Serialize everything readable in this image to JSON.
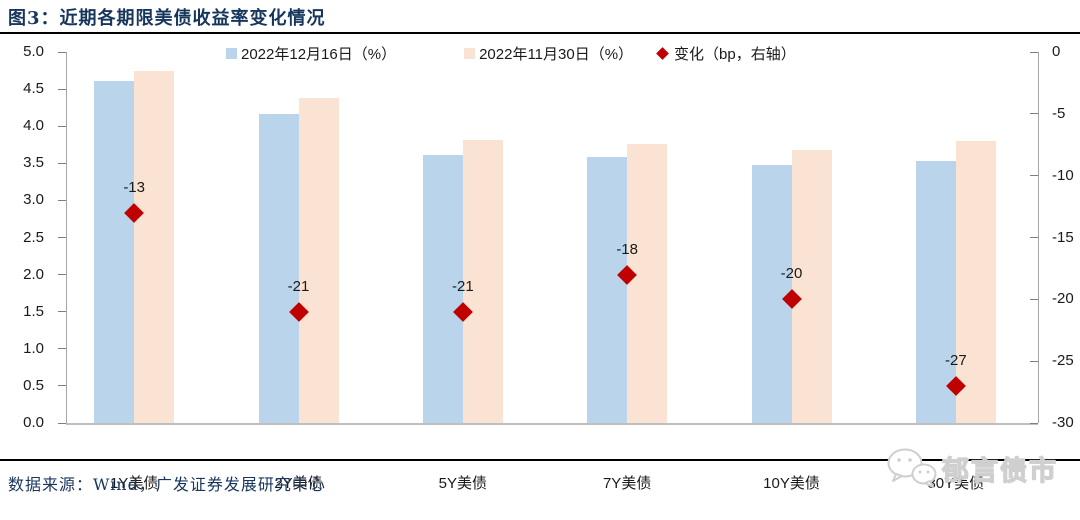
{
  "header": {
    "title": "图3：近期各期限美债收益率变化情况"
  },
  "footer": {
    "source": "数据来源：Wind，广发证券发展研究中心",
    "watermark": "郁言债市",
    "watermark_icon": "wechat-icon"
  },
  "chart_data": {
    "type": "bar",
    "title": "近期各期限美债收益率变化情况",
    "categories": [
      "1Y美债",
      "2Y美债",
      "5Y美债",
      "7Y美债",
      "10Y美债",
      "30Y美债"
    ],
    "series": [
      {
        "name": "2022年12月16日（%）",
        "type": "bar",
        "axis": "left",
        "color": "#bad4eb",
        "values": [
          4.61,
          4.17,
          3.61,
          3.58,
          3.48,
          3.53
        ]
      },
      {
        "name": "2022年11月30日（%）",
        "type": "bar",
        "axis": "left",
        "color": "#fae3d3",
        "values": [
          4.74,
          4.38,
          3.82,
          3.76,
          3.68,
          3.8
        ]
      },
      {
        "name": "变化（bp，右轴）",
        "type": "scatter-diamond",
        "axis": "right",
        "color": "#c00000",
        "values": [
          -13,
          -21,
          -21,
          -18,
          -20,
          -27
        ],
        "labels": [
          "-13",
          "-21",
          "-21",
          "-18",
          "-20",
          "-27"
        ]
      }
    ],
    "left_axis": {
      "min": 0,
      "max": 5,
      "step": 0.5,
      "decimals": 1
    },
    "right_axis": {
      "min": -30,
      "max": 0,
      "step": 5,
      "decimals": 0
    },
    "legend_position": "top",
    "grid": false,
    "colors": {
      "axis_line": "#a6a6a6",
      "baseline": "#bfbfbf",
      "accent_title": "#17365d"
    }
  }
}
